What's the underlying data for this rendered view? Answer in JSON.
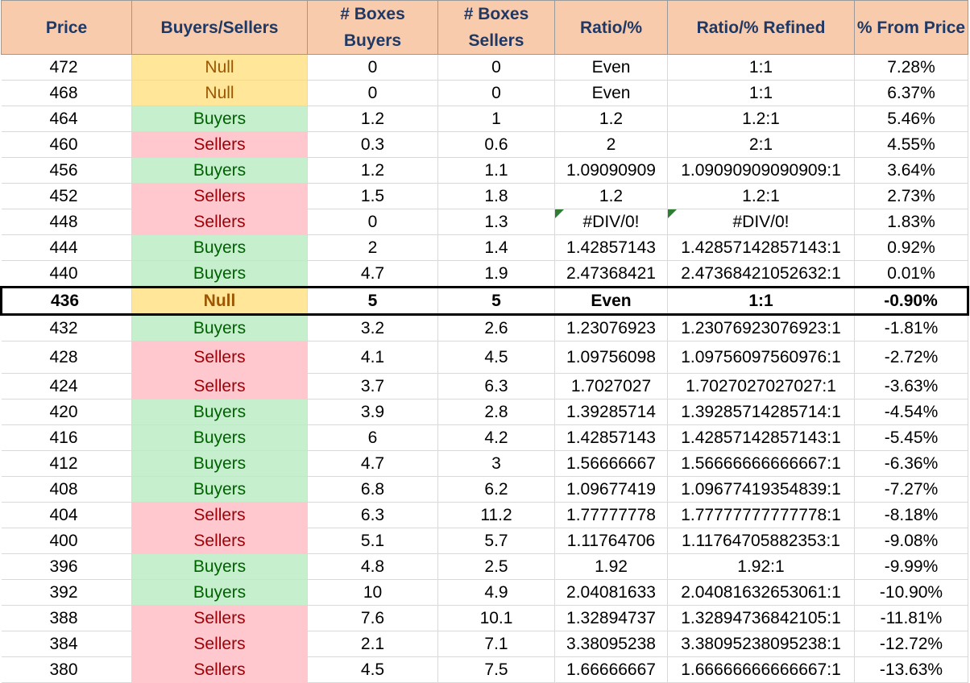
{
  "headers": {
    "price": "Price",
    "buyers_sellers": "Buyers/Sellers",
    "boxes_buyers": "# Boxes Buyers",
    "boxes_sellers": "# Boxes Sellers",
    "ratio": "Ratio/%",
    "ratio_refined": "Ratio/% Refined",
    "pct_from_price": "% From Price"
  },
  "colors": {
    "header_bg": "#f8cbad",
    "header_text": "#1f3864",
    "buyers_bg": "#c6efce",
    "buyers_text": "#006100",
    "sellers_bg": "#ffc7ce",
    "sellers_text": "#9c0006",
    "null_bg": "#ffe699",
    "null_text": "#9c5700",
    "error_flag": "#2e7d32"
  },
  "current_price": "436",
  "rows": [
    {
      "price": "472",
      "side": "Null",
      "boxes_buyers": "0",
      "boxes_sellers": "0",
      "ratio": "Even",
      "ratio_refined": "1:1",
      "pct": "7.28%"
    },
    {
      "price": "468",
      "side": "Null",
      "boxes_buyers": "0",
      "boxes_sellers": "0",
      "ratio": "Even",
      "ratio_refined": "1:1",
      "pct": "6.37%"
    },
    {
      "price": "464",
      "side": "Buyers",
      "boxes_buyers": "1.2",
      "boxes_sellers": "1",
      "ratio": "1.2",
      "ratio_refined": "1.2:1",
      "pct": "5.46%"
    },
    {
      "price": "460",
      "side": "Sellers",
      "boxes_buyers": "0.3",
      "boxes_sellers": "0.6",
      "ratio": "2",
      "ratio_refined": "2:1",
      "pct": "4.55%"
    },
    {
      "price": "456",
      "side": "Buyers",
      "boxes_buyers": "1.2",
      "boxes_sellers": "1.1",
      "ratio": "1.09090909",
      "ratio_refined": "1.09090909090909:1",
      "pct": "3.64%"
    },
    {
      "price": "452",
      "side": "Sellers",
      "boxes_buyers": "1.5",
      "boxes_sellers": "1.8",
      "ratio": "1.2",
      "ratio_refined": "1.2:1",
      "pct": "2.73%"
    },
    {
      "price": "448",
      "side": "Sellers",
      "boxes_buyers": "0",
      "boxes_sellers": "1.3",
      "ratio": "#DIV/0!",
      "ratio_refined": "#DIV/0!",
      "pct": "1.83%",
      "error": true
    },
    {
      "price": "444",
      "side": "Buyers",
      "boxes_buyers": "2",
      "boxes_sellers": "1.4",
      "ratio": "1.42857143",
      "ratio_refined": "1.42857142857143:1",
      "pct": "0.92%"
    },
    {
      "price": "440",
      "side": "Buyers",
      "boxes_buyers": "4.7",
      "boxes_sellers": "1.9",
      "ratio": "2.47368421",
      "ratio_refined": "2.47368421052632:1",
      "pct": "0.01%"
    },
    {
      "price": "436",
      "side": "Null",
      "boxes_buyers": "5",
      "boxes_sellers": "5",
      "ratio": "Even",
      "ratio_refined": "1:1",
      "pct": "-0.90%",
      "current": true
    },
    {
      "price": "432",
      "side": "Buyers",
      "boxes_buyers": "3.2",
      "boxes_sellers": "2.6",
      "ratio": "1.23076923",
      "ratio_refined": "1.23076923076923:1",
      "pct": "-1.81%"
    },
    {
      "price": "428",
      "side": "Sellers",
      "boxes_buyers": "4.1",
      "boxes_sellers": "4.5",
      "ratio": "1.09756098",
      "ratio_refined": "1.09756097560976:1",
      "pct": "-2.72%",
      "tall": true
    },
    {
      "price": "424",
      "side": "Sellers",
      "boxes_buyers": "3.7",
      "boxes_sellers": "6.3",
      "ratio": "1.7027027",
      "ratio_refined": "1.7027027027027:1",
      "pct": "-3.63%"
    },
    {
      "price": "420",
      "side": "Buyers",
      "boxes_buyers": "3.9",
      "boxes_sellers": "2.8",
      "ratio": "1.39285714",
      "ratio_refined": "1.39285714285714:1",
      "pct": "-4.54%"
    },
    {
      "price": "416",
      "side": "Buyers",
      "boxes_buyers": "6",
      "boxes_sellers": "4.2",
      "ratio": "1.42857143",
      "ratio_refined": "1.42857142857143:1",
      "pct": "-5.45%"
    },
    {
      "price": "412",
      "side": "Buyers",
      "boxes_buyers": "4.7",
      "boxes_sellers": "3",
      "ratio": "1.56666667",
      "ratio_refined": "1.56666666666667:1",
      "pct": "-6.36%"
    },
    {
      "price": "408",
      "side": "Buyers",
      "boxes_buyers": "6.8",
      "boxes_sellers": "6.2",
      "ratio": "1.09677419",
      "ratio_refined": "1.09677419354839:1",
      "pct": "-7.27%"
    },
    {
      "price": "404",
      "side": "Sellers",
      "boxes_buyers": "6.3",
      "boxes_sellers": "11.2",
      "ratio": "1.77777778",
      "ratio_refined": "1.77777777777778:1",
      "pct": "-8.18%"
    },
    {
      "price": "400",
      "side": "Sellers",
      "boxes_buyers": "5.1",
      "boxes_sellers": "5.7",
      "ratio": "1.11764706",
      "ratio_refined": "1.11764705882353:1",
      "pct": "-9.08%"
    },
    {
      "price": "396",
      "side": "Buyers",
      "boxes_buyers": "4.8",
      "boxes_sellers": "2.5",
      "ratio": "1.92",
      "ratio_refined": "1.92:1",
      "pct": "-9.99%"
    },
    {
      "price": "392",
      "side": "Buyers",
      "boxes_buyers": "10",
      "boxes_sellers": "4.9",
      "ratio": "2.04081633",
      "ratio_refined": "2.04081632653061:1",
      "pct": "-10.90%"
    },
    {
      "price": "388",
      "side": "Sellers",
      "boxes_buyers": "7.6",
      "boxes_sellers": "10.1",
      "ratio": "1.32894737",
      "ratio_refined": "1.32894736842105:1",
      "pct": "-11.81%"
    },
    {
      "price": "384",
      "side": "Sellers",
      "boxes_buyers": "2.1",
      "boxes_sellers": "7.1",
      "ratio": "3.38095238",
      "ratio_refined": "3.38095238095238:1",
      "pct": "-12.72%"
    },
    {
      "price": "380",
      "side": "Sellers",
      "boxes_buyers": "4.5",
      "boxes_sellers": "7.5",
      "ratio": "1.66666667",
      "ratio_refined": "1.66666666666667:1",
      "pct": "-13.63%"
    }
  ]
}
